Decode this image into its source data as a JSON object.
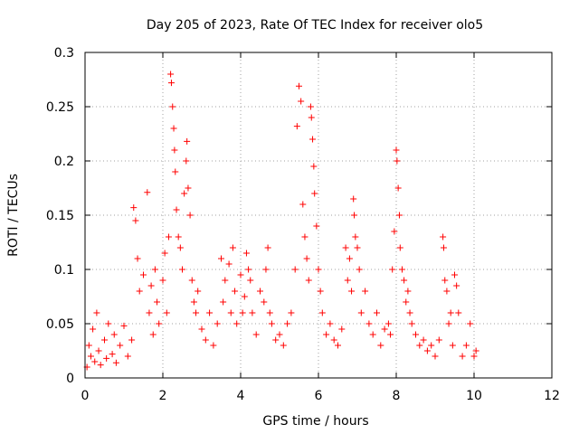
{
  "chart_data": {
    "type": "scatter",
    "title": "Day 205 of 2023, Rate Of TEC Index for receiver olo5",
    "xlabel": "GPS time / hours",
    "ylabel": "ROTI / TECUs",
    "xlim": [
      0,
      12
    ],
    "ylim": [
      0,
      0.3
    ],
    "x_ticks": [
      "0",
      "2",
      "4",
      "6",
      "8",
      "10",
      "12"
    ],
    "y_ticks": [
      "0",
      "0.05",
      "0.1",
      "0.15",
      "0.2",
      "0.25",
      "0.3"
    ],
    "grid": true,
    "marker": "plus",
    "color": "#ff0000",
    "series": [
      {
        "name": "ROTI",
        "points": [
          [
            0.05,
            0.01
          ],
          [
            0.1,
            0.03
          ],
          [
            0.15,
            0.02
          ],
          [
            0.2,
            0.045
          ],
          [
            0.25,
            0.015
          ],
          [
            0.3,
            0.06
          ],
          [
            0.35,
            0.025
          ],
          [
            0.4,
            0.012
          ],
          [
            0.5,
            0.035
          ],
          [
            0.55,
            0.018
          ],
          [
            0.6,
            0.05
          ],
          [
            0.7,
            0.022
          ],
          [
            0.75,
            0.04
          ],
          [
            0.8,
            0.014
          ],
          [
            0.9,
            0.03
          ],
          [
            1.0,
            0.048
          ],
          [
            1.1,
            0.02
          ],
          [
            1.2,
            0.035
          ],
          [
            1.25,
            0.157
          ],
          [
            1.3,
            0.145
          ],
          [
            1.35,
            0.11
          ],
          [
            1.4,
            0.08
          ],
          [
            1.5,
            0.095
          ],
          [
            1.6,
            0.171
          ],
          [
            1.65,
            0.06
          ],
          [
            1.7,
            0.085
          ],
          [
            1.75,
            0.04
          ],
          [
            1.8,
            0.1
          ],
          [
            1.85,
            0.07
          ],
          [
            1.9,
            0.05
          ],
          [
            2.0,
            0.09
          ],
          [
            2.05,
            0.115
          ],
          [
            2.1,
            0.06
          ],
          [
            2.15,
            0.13
          ],
          [
            2.2,
            0.28
          ],
          [
            2.22,
            0.272
          ],
          [
            2.25,
            0.25
          ],
          [
            2.28,
            0.23
          ],
          [
            2.3,
            0.21
          ],
          [
            2.32,
            0.19
          ],
          [
            2.35,
            0.155
          ],
          [
            2.4,
            0.13
          ],
          [
            2.45,
            0.12
          ],
          [
            2.5,
            0.1
          ],
          [
            2.55,
            0.17
          ],
          [
            2.6,
            0.2
          ],
          [
            2.62,
            0.218
          ],
          [
            2.65,
            0.175
          ],
          [
            2.7,
            0.15
          ],
          [
            2.75,
            0.09
          ],
          [
            2.8,
            0.07
          ],
          [
            2.85,
            0.06
          ],
          [
            2.9,
            0.08
          ],
          [
            3.0,
            0.045
          ],
          [
            3.1,
            0.035
          ],
          [
            3.2,
            0.06
          ],
          [
            3.3,
            0.03
          ],
          [
            3.4,
            0.05
          ],
          [
            3.5,
            0.11
          ],
          [
            3.55,
            0.07
          ],
          [
            3.6,
            0.09
          ],
          [
            3.7,
            0.105
          ],
          [
            3.75,
            0.06
          ],
          [
            3.8,
            0.12
          ],
          [
            3.85,
            0.08
          ],
          [
            3.9,
            0.05
          ],
          [
            4.0,
            0.095
          ],
          [
            4.05,
            0.06
          ],
          [
            4.1,
            0.075
          ],
          [
            4.15,
            0.115
          ],
          [
            4.2,
            0.1
          ],
          [
            4.25,
            0.09
          ],
          [
            4.3,
            0.06
          ],
          [
            4.4,
            0.04
          ],
          [
            4.5,
            0.08
          ],
          [
            4.6,
            0.07
          ],
          [
            4.65,
            0.1
          ],
          [
            4.7,
            0.12
          ],
          [
            4.75,
            0.06
          ],
          [
            4.8,
            0.05
          ],
          [
            4.9,
            0.035
          ],
          [
            5.0,
            0.04
          ],
          [
            5.1,
            0.03
          ],
          [
            5.2,
            0.05
          ],
          [
            5.3,
            0.06
          ],
          [
            5.4,
            0.1
          ],
          [
            5.45,
            0.232
          ],
          [
            5.5,
            0.269
          ],
          [
            5.55,
            0.255
          ],
          [
            5.6,
            0.16
          ],
          [
            5.65,
            0.13
          ],
          [
            5.7,
            0.11
          ],
          [
            5.75,
            0.09
          ],
          [
            5.8,
            0.25
          ],
          [
            5.82,
            0.24
          ],
          [
            5.85,
            0.22
          ],
          [
            5.88,
            0.195
          ],
          [
            5.9,
            0.17
          ],
          [
            5.95,
            0.14
          ],
          [
            6.0,
            0.1
          ],
          [
            6.05,
            0.08
          ],
          [
            6.1,
            0.06
          ],
          [
            6.2,
            0.04
          ],
          [
            6.3,
            0.05
          ],
          [
            6.4,
            0.035
          ],
          [
            6.5,
            0.03
          ],
          [
            6.6,
            0.045
          ],
          [
            6.7,
            0.12
          ],
          [
            6.75,
            0.09
          ],
          [
            6.8,
            0.11
          ],
          [
            6.85,
            0.08
          ],
          [
            6.9,
            0.165
          ],
          [
            6.92,
            0.15
          ],
          [
            6.95,
            0.13
          ],
          [
            7.0,
            0.12
          ],
          [
            7.05,
            0.1
          ],
          [
            7.1,
            0.06
          ],
          [
            7.2,
            0.08
          ],
          [
            7.3,
            0.05
          ],
          [
            7.4,
            0.04
          ],
          [
            7.5,
            0.06
          ],
          [
            7.6,
            0.03
          ],
          [
            7.7,
            0.045
          ],
          [
            7.8,
            0.05
          ],
          [
            7.85,
            0.04
          ],
          [
            7.9,
            0.1
          ],
          [
            7.95,
            0.135
          ],
          [
            8.0,
            0.21
          ],
          [
            8.02,
            0.2
          ],
          [
            8.05,
            0.175
          ],
          [
            8.08,
            0.15
          ],
          [
            8.1,
            0.12
          ],
          [
            8.15,
            0.1
          ],
          [
            8.2,
            0.09
          ],
          [
            8.25,
            0.07
          ],
          [
            8.3,
            0.08
          ],
          [
            8.35,
            0.06
          ],
          [
            8.4,
            0.05
          ],
          [
            8.5,
            0.04
          ],
          [
            8.6,
            0.03
          ],
          [
            8.7,
            0.035
          ],
          [
            8.8,
            0.025
          ],
          [
            8.9,
            0.03
          ],
          [
            9.0,
            0.02
          ],
          [
            9.1,
            0.035
          ],
          [
            9.2,
            0.13
          ],
          [
            9.22,
            0.12
          ],
          [
            9.25,
            0.09
          ],
          [
            9.3,
            0.08
          ],
          [
            9.35,
            0.05
          ],
          [
            9.4,
            0.06
          ],
          [
            9.45,
            0.03
          ],
          [
            9.5,
            0.095
          ],
          [
            9.55,
            0.085
          ],
          [
            9.6,
            0.06
          ],
          [
            9.7,
            0.02
          ],
          [
            9.8,
            0.03
          ],
          [
            9.9,
            0.05
          ],
          [
            10.0,
            0.02
          ],
          [
            10.05,
            0.025
          ]
        ]
      }
    ]
  }
}
